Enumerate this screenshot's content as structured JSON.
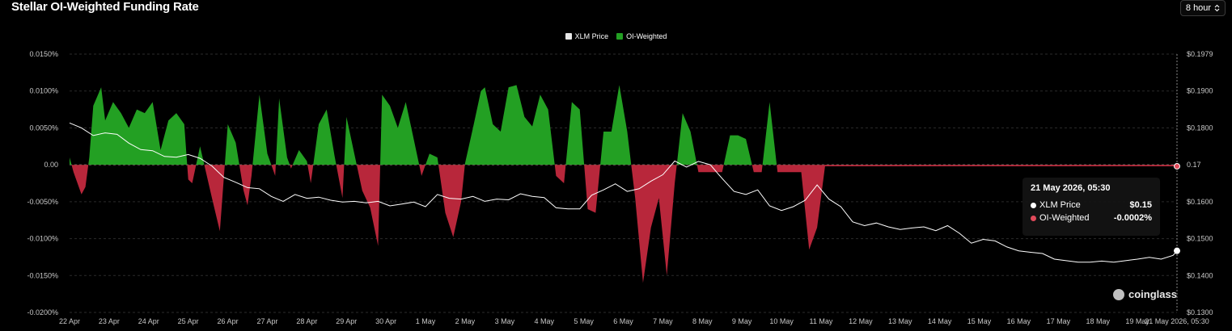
{
  "title": "Stellar OI-Weighted Funding Rate",
  "interval": {
    "label": "8 hour",
    "icon": "updown-chevron-icon"
  },
  "legend": [
    {
      "label": "XLM Price",
      "color": "#e6e6e6"
    },
    {
      "label": "OI-Weighted",
      "color": "#23a023"
    }
  ],
  "tooltip": {
    "date": "21 May 2026, 05:30",
    "rows": [
      {
        "label": "XLM Price",
        "value": "$0.15",
        "color": "#ffffff"
      },
      {
        "label": "OI-Weighted",
        "value": "-0.0002%",
        "color": "#e04a5a"
      }
    ]
  },
  "watermark": "coinglass",
  "colors": {
    "positive": "#23a023",
    "negative": "#b8273b",
    "price_line": "#ffffff",
    "grid": "#2b2b2b"
  },
  "chart_data": {
    "type": "area",
    "x_labels": [
      "22 Apr",
      "23 Apr",
      "24 Apr",
      "25 Apr",
      "26 Apr",
      "27 Apr",
      "28 Apr",
      "29 Apr",
      "30 Apr",
      "1 May",
      "2 May",
      "3 May",
      "4 May",
      "5 May",
      "6 May",
      "7 May",
      "8 May",
      "9 May",
      "10 May",
      "11 May",
      "12 May",
      "13 May",
      "14 May",
      "15 May",
      "16 May",
      "17 May",
      "18 May",
      "19 May",
      "21 May 2026, 05:30"
    ],
    "left_axis": {
      "ticks": [
        "0.0150%",
        "0.0100%",
        "0.0050%",
        "0.00",
        "-0.0050%",
        "-0.0100%",
        "-0.0150%",
        "-0.0200%"
      ],
      "ylim": [
        -0.02,
        0.015
      ]
    },
    "right_axis": {
      "ticks": [
        "$0.1979",
        "$0.1900",
        "$0.1800",
        "0.17",
        "$0.1600",
        "$0.1500",
        "$0.1400",
        "$0.1300"
      ],
      "ylim": [
        0.13,
        0.1979
      ]
    },
    "series": [
      {
        "name": "OI-Weighted",
        "x": [
          0,
          0.1,
          0.3,
          0.4,
          0.5,
          0.6,
          0.8,
          0.9,
          1.1,
          1.3,
          1.5,
          1.7,
          1.9,
          2.1,
          2.3,
          2.5,
          2.7,
          2.9,
          3.0,
          3.1,
          3.3,
          3.6,
          3.8,
          4.0,
          4.2,
          4.4,
          4.5,
          4.6,
          4.8,
          5.0,
          5.2,
          5.3,
          5.5,
          5.6,
          5.8,
          6.0,
          6.1,
          6.3,
          6.5,
          6.7,
          6.9,
          7.0,
          7.2,
          7.4,
          7.6,
          7.8,
          7.9,
          8.1,
          8.3,
          8.5,
          8.7,
          8.9,
          9.1,
          9.3,
          9.5,
          9.7,
          9.9,
          10.0,
          10.2,
          10.4,
          10.5,
          10.7,
          10.9,
          11.1,
          11.3,
          11.5,
          11.7,
          11.9,
          12.1,
          12.3,
          12.5,
          12.7,
          12.9,
          13.1,
          13.3,
          13.5,
          13.7,
          13.9,
          14.1,
          14.3,
          14.5,
          14.7,
          14.9,
          15.1,
          15.3,
          15.5,
          15.7,
          15.9,
          16.1,
          16.3,
          16.5,
          16.7,
          16.9,
          17.1,
          17.3,
          17.5,
          17.7,
          17.9,
          18.1,
          18.3,
          18.5,
          18.7,
          18.9,
          19.1,
          19.3,
          19.5,
          19.7,
          19.9,
          20.1,
          20.3,
          20.5,
          20.7,
          20.9,
          21.1,
          21.3,
          21.5,
          21.7,
          21.9,
          22.0,
          22.2,
          22.4,
          22.6,
          22.8,
          23.0,
          23.2,
          23.4,
          23.6,
          23.8,
          24.0,
          24.2,
          24.4,
          24.6,
          24.8,
          25.0,
          25.2,
          25.4,
          25.6,
          25.8,
          26.0,
          26.2,
          26.4,
          26.6,
          26.8,
          27.0,
          27.2,
          27.4,
          27.6,
          27.8,
          28.0
        ],
        "values": [
          0.001,
          -0.001,
          -0.004,
          -0.003,
          0.001,
          0.008,
          0.0105,
          0.006,
          0.0085,
          0.007,
          0.005,
          0.0075,
          0.007,
          0.0085,
          0.002,
          0.006,
          0.007,
          0.0055,
          -0.002,
          -0.0025,
          0.0025,
          -0.0045,
          -0.009,
          0.0055,
          0.003,
          -0.0035,
          -0.0055,
          -0.0015,
          0.0095,
          0.0015,
          -0.0015,
          0.009,
          0.001,
          -0.0005,
          0.002,
          0.0005,
          -0.0025,
          0.0055,
          0.0075,
          0.0012,
          -0.0045,
          0.0065,
          0.0015,
          -0.0035,
          -0.0058,
          -0.011,
          0.0095,
          0.008,
          0.005,
          0.0085,
          0.0035,
          -0.0015,
          0.0015,
          0.001,
          -0.0065,
          -0.0098,
          -0.005,
          0.0002,
          0.005,
          0.01,
          0.0105,
          0.0055,
          0.0045,
          0.0105,
          0.0108,
          0.0065,
          0.0052,
          0.0095,
          0.0075,
          -0.0015,
          -0.0025,
          0.0085,
          0.0075,
          -0.006,
          -0.0065,
          0.0045,
          0.0045,
          0.0108,
          0.0045,
          -0.0045,
          -0.016,
          -0.0085,
          -0.0045,
          -0.015,
          -0.0025,
          0.007,
          0.0045,
          -0.001,
          -0.001,
          -0.001,
          -0.001,
          0.004,
          0.004,
          0.0035,
          -0.001,
          -0.001,
          0.0085,
          -0.001,
          -0.001,
          -0.001,
          -0.001,
          -0.0115,
          -0.0085,
          -0.0002,
          -0.0002,
          -0.0002,
          -0.0002,
          -0.0002,
          -0.0002,
          -0.0002,
          -0.0002,
          -0.0002,
          -0.0002,
          -0.0002,
          -0.0002,
          -0.0002,
          -0.0002,
          -0.0002,
          -0.0002,
          -0.0002,
          -0.0002,
          -0.0002,
          -0.0002,
          -0.0002,
          -0.0002,
          -0.0002,
          -0.0002,
          -0.0002,
          -0.0002,
          -0.0002,
          -0.0002,
          -0.0002,
          -0.0002,
          -0.0002,
          -0.0002,
          -0.0002,
          -0.0002,
          -0.0002,
          -0.0002,
          -0.0002,
          -0.0002,
          -0.0002,
          -0.0002,
          -0.0002,
          -0.0002,
          -0.0002,
          -0.0002,
          -0.0002,
          -0.0002
        ]
      },
      {
        "name": "XLM Price",
        "x": [
          0,
          0.3,
          0.6,
          0.9,
          1.2,
          1.5,
          1.8,
          2.1,
          2.4,
          2.7,
          3.0,
          3.3,
          3.6,
          3.9,
          4.2,
          4.5,
          4.8,
          5.1,
          5.4,
          5.7,
          6.0,
          6.3,
          6.6,
          6.9,
          7.2,
          7.5,
          7.8,
          8.1,
          8.4,
          8.7,
          9.0,
          9.3,
          9.6,
          9.9,
          10.2,
          10.5,
          10.8,
          11.1,
          11.4,
          11.7,
          12.0,
          12.3,
          12.6,
          12.9,
          13.2,
          13.5,
          13.8,
          14.1,
          14.4,
          14.7,
          15.0,
          15.3,
          15.6,
          15.9,
          16.2,
          16.5,
          16.8,
          17.1,
          17.4,
          17.7,
          18.0,
          18.3,
          18.6,
          18.9,
          19.2,
          19.5,
          19.8,
          20.1,
          20.4,
          20.7,
          21.0,
          21.3,
          21.6,
          21.9,
          22.2,
          22.5,
          22.8,
          23.1,
          23.4,
          23.7,
          24.0,
          24.3,
          24.6,
          24.9,
          25.2,
          25.5,
          25.8,
          26.1,
          26.4,
          26.7,
          27.0,
          27.3,
          27.6,
          27.9,
          28.0
        ],
        "values": [
          0.1798,
          0.1785,
          0.1765,
          0.1772,
          0.1768,
          0.1745,
          0.1728,
          0.1725,
          0.171,
          0.1708,
          0.1715,
          0.1705,
          0.1685,
          0.1655,
          0.1642,
          0.1628,
          0.1625,
          0.1605,
          0.1592,
          0.161,
          0.16,
          0.1603,
          0.1595,
          0.159,
          0.1592,
          0.1588,
          0.1592,
          0.158,
          0.1585,
          0.159,
          0.1578,
          0.161,
          0.16,
          0.1598,
          0.1605,
          0.1592,
          0.1598,
          0.1596,
          0.1612,
          0.1605,
          0.1602,
          0.1575,
          0.1572,
          0.1572,
          0.1608,
          0.1622,
          0.1638,
          0.1618,
          0.1625,
          0.1645,
          0.1662,
          0.1698,
          0.1682,
          0.1697,
          0.1688,
          0.1652,
          0.1618,
          0.161,
          0.1622,
          0.158,
          0.1568,
          0.1578,
          0.1595,
          0.1635,
          0.1598,
          0.1578,
          0.1538,
          0.1528,
          0.1535,
          0.1525,
          0.1518,
          0.1522,
          0.1525,
          0.1515,
          0.1528,
          0.1508,
          0.1482,
          0.1492,
          0.1488,
          0.1472,
          0.1462,
          0.1458,
          0.1455,
          0.144,
          0.1436,
          0.1432,
          0.1432,
          0.1435,
          0.1432,
          0.1436,
          0.144,
          0.1445,
          0.144,
          0.145,
          0.1462
        ]
      }
    ],
    "cursor_x": "21 May 2026, 05:30",
    "grid": true,
    "legend_position": "top-center"
  }
}
